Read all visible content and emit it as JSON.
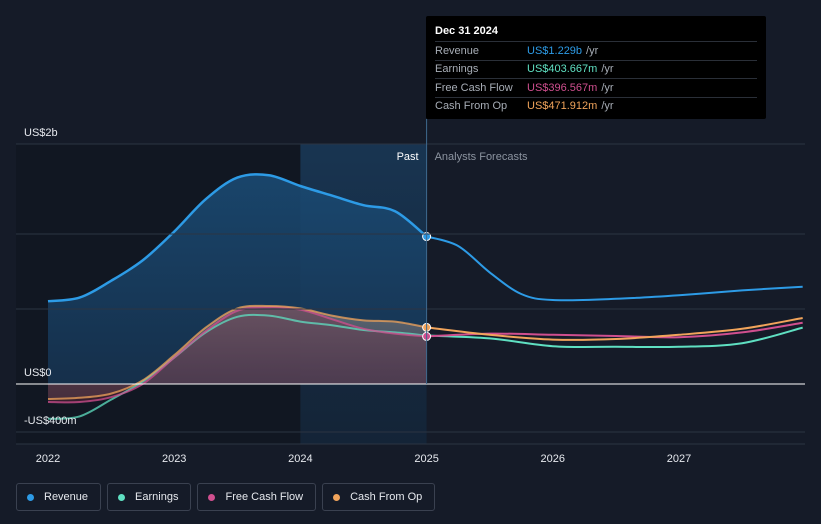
{
  "chart_data": {
    "type": "line",
    "x_unit": "year",
    "x_ticks": [
      "2022",
      "2023",
      "2024",
      "2025",
      "2026",
      "2027"
    ],
    "y_ticks": [
      {
        "value": 2000,
        "label": "US$2b"
      },
      {
        "value": 0,
        "label": "US$0"
      },
      {
        "value": -400,
        "label": "-US$400m"
      }
    ],
    "ylim": [
      -400,
      2000
    ],
    "xlim": [
      2021.75,
      2027.98
    ],
    "past_end": 2025.0,
    "highlight_start": 2024.0,
    "past_label": "Past",
    "forecast_label": "Analysts Forecasts",
    "series": [
      {
        "name": "Revenue",
        "color": "#2d9be6",
        "points": [
          [
            2022.0,
            690
          ],
          [
            2022.25,
            720
          ],
          [
            2022.5,
            860
          ],
          [
            2022.75,
            1030
          ],
          [
            2023.0,
            1270
          ],
          [
            2023.25,
            1540
          ],
          [
            2023.5,
            1720
          ],
          [
            2023.75,
            1740
          ],
          [
            2024.0,
            1650
          ],
          [
            2024.25,
            1570
          ],
          [
            2024.5,
            1490
          ],
          [
            2024.75,
            1440
          ],
          [
            2025.0,
            1229
          ]
        ],
        "forecast": [
          [
            2025.0,
            1229
          ],
          [
            2025.25,
            1150
          ],
          [
            2025.5,
            930
          ],
          [
            2025.75,
            750
          ],
          [
            2026.0,
            700
          ],
          [
            2026.5,
            710
          ],
          [
            2027.0,
            740
          ],
          [
            2027.5,
            780
          ],
          [
            2027.98,
            810
          ]
        ]
      },
      {
        "name": "Earnings",
        "color": "#5fe0c2",
        "points": [
          [
            2022.0,
            -290
          ],
          [
            2022.25,
            -270
          ],
          [
            2022.5,
            -130
          ],
          [
            2022.75,
            20
          ],
          [
            2023.0,
            220
          ],
          [
            2023.25,
            430
          ],
          [
            2023.5,
            560
          ],
          [
            2023.75,
            570
          ],
          [
            2024.0,
            520
          ],
          [
            2024.25,
            490
          ],
          [
            2024.5,
            450
          ],
          [
            2024.75,
            430
          ],
          [
            2025.0,
            403.667
          ]
        ],
        "forecast": [
          [
            2025.0,
            403.667
          ],
          [
            2025.5,
            380
          ],
          [
            2026.0,
            315
          ],
          [
            2026.5,
            310
          ],
          [
            2027.0,
            310
          ],
          [
            2027.5,
            340
          ],
          [
            2027.98,
            470
          ]
        ]
      },
      {
        "name": "Free Cash Flow",
        "color": "#d04f8f",
        "points": [
          [
            2022.0,
            -150
          ],
          [
            2022.25,
            -150
          ],
          [
            2022.5,
            -110
          ],
          [
            2022.75,
            0
          ],
          [
            2023.0,
            220
          ],
          [
            2023.25,
            440
          ],
          [
            2023.5,
            610
          ],
          [
            2023.75,
            640
          ],
          [
            2024.0,
            620
          ],
          [
            2024.25,
            540
          ],
          [
            2024.5,
            460
          ],
          [
            2024.75,
            420
          ],
          [
            2025.0,
            396.567
          ]
        ],
        "forecast": [
          [
            2025.0,
            396.567
          ],
          [
            2025.5,
            420
          ],
          [
            2026.0,
            410
          ],
          [
            2026.5,
            400
          ],
          [
            2027.0,
            390
          ],
          [
            2027.5,
            430
          ],
          [
            2027.98,
            510
          ]
        ]
      },
      {
        "name": "Cash From Op",
        "color": "#f1a45b",
        "points": [
          [
            2022.0,
            -125
          ],
          [
            2022.25,
            -115
          ],
          [
            2022.5,
            -80
          ],
          [
            2022.75,
            30
          ],
          [
            2023.0,
            240
          ],
          [
            2023.25,
            470
          ],
          [
            2023.5,
            630
          ],
          [
            2023.75,
            650
          ],
          [
            2024.0,
            630
          ],
          [
            2024.25,
            570
          ],
          [
            2024.5,
            530
          ],
          [
            2024.75,
            520
          ],
          [
            2025.0,
            471.912
          ]
        ],
        "forecast": [
          [
            2025.0,
            471.912
          ],
          [
            2025.5,
            410
          ],
          [
            2026.0,
            370
          ],
          [
            2026.5,
            375
          ],
          [
            2027.0,
            410
          ],
          [
            2027.5,
            460
          ],
          [
            2027.98,
            550
          ]
        ]
      }
    ]
  },
  "tooltip": {
    "date": "Dec 31 2024",
    "rows": [
      {
        "name": "Revenue",
        "value": "US$1.229b",
        "unit": "/yr",
        "color": "#2d9be6"
      },
      {
        "name": "Earnings",
        "value": "US$403.667m",
        "unit": "/yr",
        "color": "#5fe0c2"
      },
      {
        "name": "Free Cash Flow",
        "value": "US$396.567m",
        "unit": "/yr",
        "color": "#d04f8f"
      },
      {
        "name": "Cash From Op",
        "value": "US$471.912m",
        "unit": "/yr",
        "color": "#f1a45b"
      }
    ]
  },
  "legend": [
    {
      "label": "Revenue",
      "color": "#2d9be6"
    },
    {
      "label": "Earnings",
      "color": "#5fe0c2"
    },
    {
      "label": "Free Cash Flow",
      "color": "#d04f8f"
    },
    {
      "label": "Cash From Op",
      "color": "#f1a45b"
    }
  ]
}
